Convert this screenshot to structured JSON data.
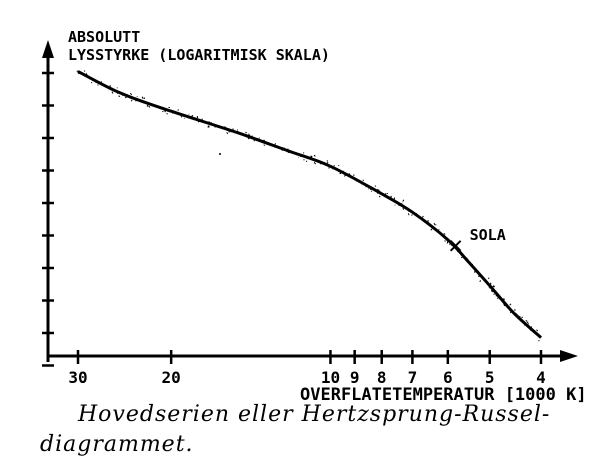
{
  "y_axis_label": {
    "line1": "ABSOLUTT",
    "line2": "LYSSTYRKE (LOGARITMISK SKALA)"
  },
  "x_axis_label": "OVERFLATETEMPERATUR [1000 K]",
  "x_ticks": [
    "30",
    "20",
    "10",
    "9",
    "8",
    "7",
    "6",
    "5",
    "4"
  ],
  "sun_label": "SOLA",
  "caption": {
    "line1": "Hovedserien eller Hertzsprung-Russel-",
    "line2": "diagrammet."
  },
  "chart_data": {
    "type": "line",
    "x_scale": "log-reversed",
    "x_ticks": [
      30,
      20,
      10,
      9,
      8,
      7,
      6,
      5,
      4
    ],
    "y_scale": "log",
    "curve_points": [
      {
        "T": 30,
        "L": 0.93
      },
      {
        "T": 25,
        "L": 0.86
      },
      {
        "T": 20,
        "L": 0.8
      },
      {
        "T": 15,
        "L": 0.73
      },
      {
        "T": 12,
        "L": 0.67
      },
      {
        "T": 10,
        "L": 0.62
      },
      {
        "T": 8,
        "L": 0.53
      },
      {
        "T": 7,
        "L": 0.47
      },
      {
        "T": 6,
        "L": 0.38
      },
      {
        "T": 5.5,
        "L": 0.31
      },
      {
        "T": 5,
        "L": 0.23
      },
      {
        "T": 4.5,
        "L": 0.14
      },
      {
        "T": 4,
        "L": 0.06
      }
    ],
    "sun": {
      "T": 5.8,
      "L": 0.36
    }
  }
}
